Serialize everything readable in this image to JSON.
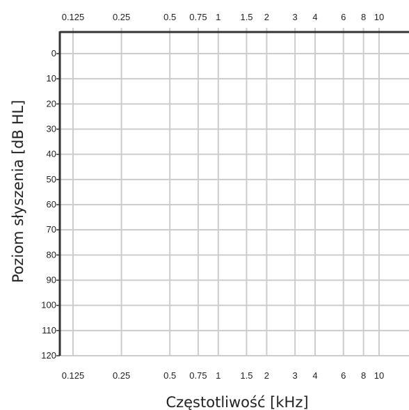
{
  "chart_data": {
    "type": "line",
    "title": "",
    "xlabel": "Częstotliwość [kHz]",
    "ylabel": "Poziom słyszenia [dB HL]",
    "x_scale": "log",
    "x_ticks": [
      {
        "value": 0.125,
        "label": "0.125"
      },
      {
        "value": 0.25,
        "label": "0.25"
      },
      {
        "value": 0.5,
        "label": "0.5"
      },
      {
        "value": 0.75,
        "label": "0.75"
      },
      {
        "value": 1,
        "label": "1"
      },
      {
        "value": 1.5,
        "label": "1.5"
      },
      {
        "value": 2,
        "label": "2"
      },
      {
        "value": 3,
        "label": "3"
      },
      {
        "value": 4,
        "label": "4"
      },
      {
        "value": 6,
        "label": "6"
      },
      {
        "value": 8,
        "label": "8"
      },
      {
        "value": 10,
        "label": "10"
      }
    ],
    "y_ticks": [
      {
        "value": 0,
        "label": "0"
      },
      {
        "value": 10,
        "label": "10"
      },
      {
        "value": 20,
        "label": "20"
      },
      {
        "value": 30,
        "label": "30"
      },
      {
        "value": 40,
        "label": "40"
      },
      {
        "value": 50,
        "label": "50"
      },
      {
        "value": 60,
        "label": "60"
      },
      {
        "value": 70,
        "label": "70"
      },
      {
        "value": 80,
        "label": "80"
      },
      {
        "value": 90,
        "label": "90"
      },
      {
        "value": 100,
        "label": "100"
      },
      {
        "value": 110,
        "label": "110"
      },
      {
        "value": 120,
        "label": "120"
      }
    ],
    "ylim": [
      -10,
      120
    ],
    "y_inverted": true,
    "grid": true,
    "series": [],
    "colors": {
      "grid": "#cccccc",
      "axis": "#333333",
      "text": "#222222"
    }
  }
}
